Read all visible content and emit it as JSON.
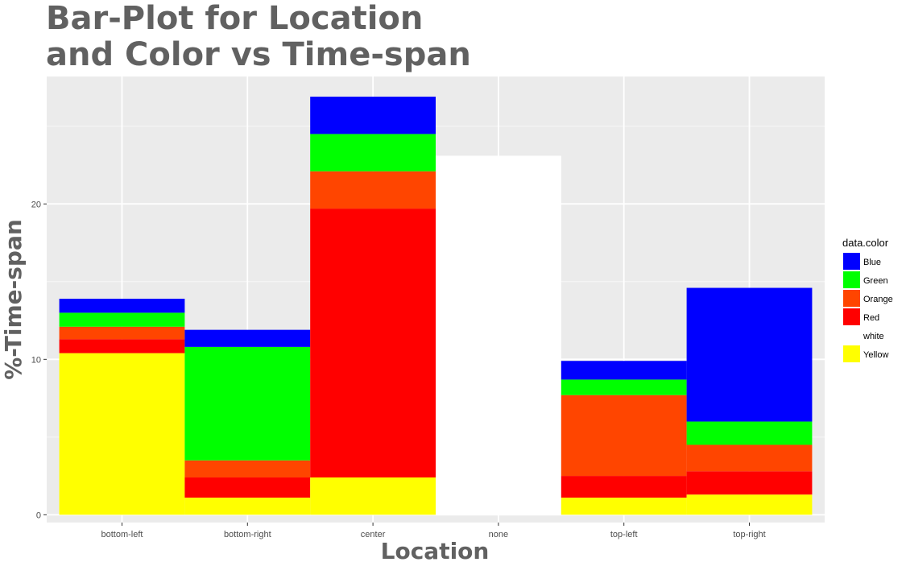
{
  "chart_data": {
    "type": "bar",
    "stacked": true,
    "title_lines": [
      "Bar-Plot for Location",
      "and Color vs Time-span"
    ],
    "xlabel": "Location",
    "ylabel": "%-Time-span",
    "categories": [
      "bottom-left",
      "bottom-right",
      "center",
      "none",
      "top-left",
      "top-right"
    ],
    "ylim": [
      -0.5,
      28.2
    ],
    "yticks": [
      0,
      10,
      20
    ],
    "grid": true,
    "legend": {
      "title": "data.color",
      "position": "right"
    },
    "series": [
      {
        "name": "Yellow",
        "color": "#FFFF00",
        "values": [
          10.4,
          1.1,
          2.4,
          0,
          1.1,
          1.3
        ]
      },
      {
        "name": "white",
        "color": "#FFFFFF",
        "values": [
          0,
          0,
          0,
          23.1,
          0,
          0
        ]
      },
      {
        "name": "Red",
        "color": "#FF0000",
        "values": [
          0.9,
          1.3,
          17.3,
          0,
          1.4,
          1.5
        ]
      },
      {
        "name": "Orange",
        "color": "#FF4500",
        "values": [
          0.8,
          1.1,
          2.4,
          0,
          5.2,
          1.7
        ]
      },
      {
        "name": "Green",
        "color": "#00FF00",
        "values": [
          0.9,
          7.3,
          2.4,
          0,
          1.0,
          1.5
        ]
      },
      {
        "name": "Blue",
        "color": "#0000FF",
        "values": [
          0.9,
          1.1,
          2.4,
          0,
          1.2,
          8.6
        ]
      }
    ],
    "legend_order": [
      "Blue",
      "Green",
      "Orange",
      "Red",
      "white",
      "Yellow"
    ]
  }
}
